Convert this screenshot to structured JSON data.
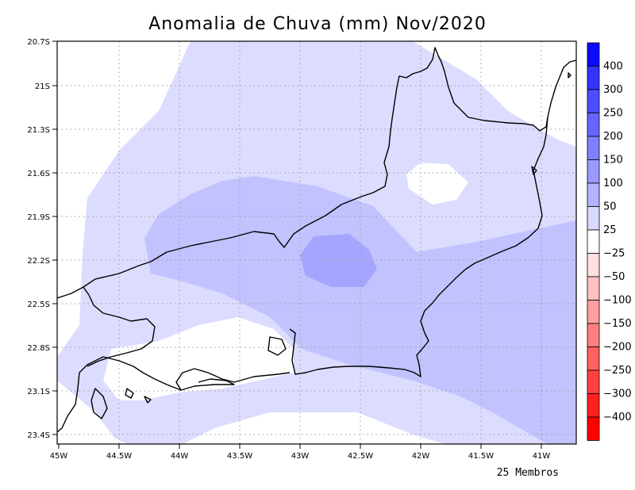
{
  "title": "Anomalia de Chuva (mm) Nov/2020",
  "footer": "25 Membros",
  "lat_labels": [
    "20.7S",
    "21S",
    "21.3S",
    "21.6S",
    "21.9S",
    "22.2S",
    "22.5S",
    "22.8S",
    "23.1S",
    "23.4S"
  ],
  "lon_labels": [
    "45W",
    "44.5W",
    "44W",
    "43.5W",
    "43W",
    "42.5W",
    "42W",
    "41.5W",
    "41W"
  ],
  "colorbar": {
    "labels": [
      "400",
      "300",
      "250",
      "200",
      "150",
      "100",
      "50",
      "25",
      "−25",
      "−50",
      "−100",
      "−150",
      "−200",
      "−250",
      "−300",
      "−400"
    ],
    "colors": [
      "#0a0aff",
      "#3333ff",
      "#4d4dff",
      "#6666ff",
      "#8080ff",
      "#9999ff",
      "#b3b3ff",
      "#d9d9ff",
      "#ffffff",
      "#ffe0e0",
      "#ffc0c0",
      "#ff9f9f",
      "#ff7f7f",
      "#ff6060",
      "#ff4040",
      "#ff2020",
      "#ff0000"
    ]
  },
  "fill_colors": {
    "level_25": "#dcdcff",
    "level_50": "#c2c2ff",
    "level_100": "#a5a5ff"
  }
}
